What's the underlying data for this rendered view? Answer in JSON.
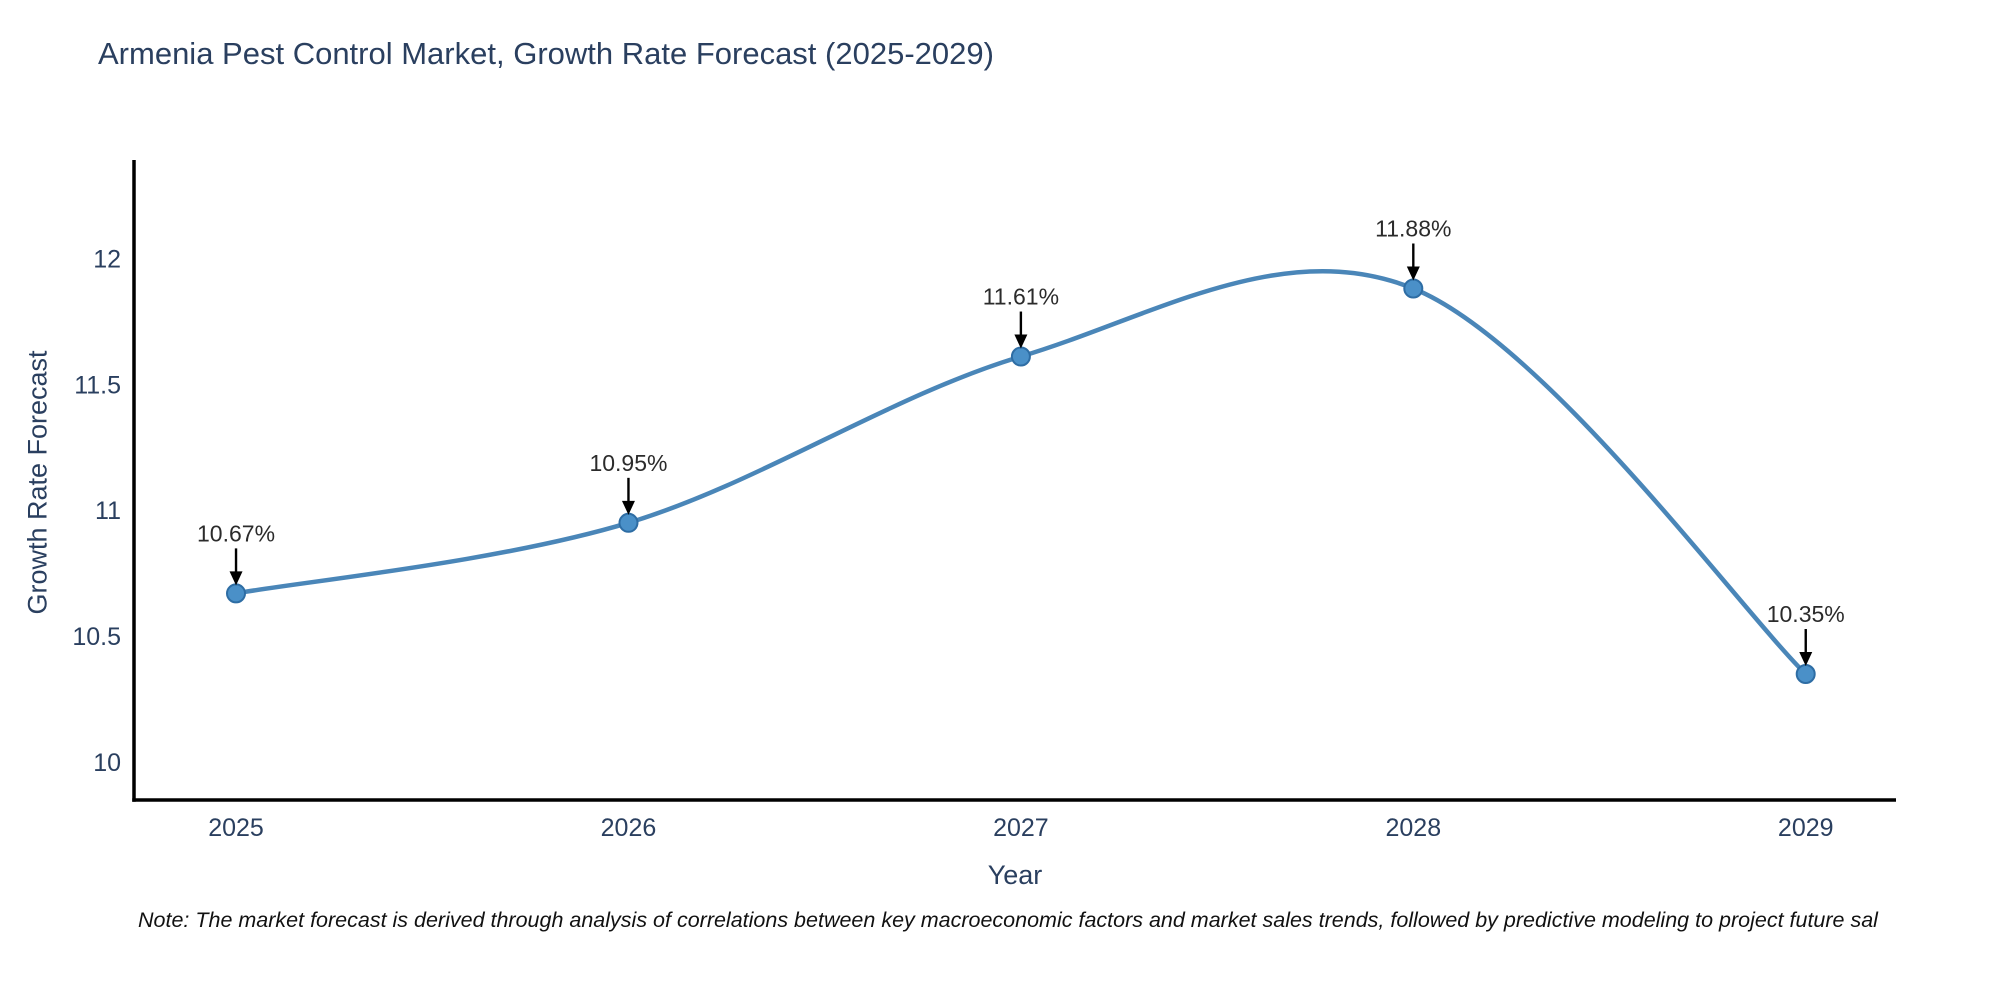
{
  "chart_data": {
    "type": "line",
    "line_shape": "spline",
    "x": [
      2025,
      2026,
      2027,
      2028,
      2029
    ],
    "y": [
      10.67,
      10.95,
      11.61,
      11.88,
      10.35
    ],
    "point_labels": [
      "10.67%",
      "10.95%",
      "11.61%",
      "11.88%",
      "10.35%"
    ],
    "title": "Armenia Pest Control Market, Growth Rate Forecast (2025-2029)",
    "xlabel": "Year",
    "ylabel": "Growth Rate Forecast",
    "x_ticks": [
      2025,
      2026,
      2027,
      2028,
      2029
    ],
    "y_ticks": [
      10,
      10.5,
      11,
      11.5,
      12
    ],
    "xlim": [
      2024.74,
      2029.23
    ],
    "ylim": [
      9.85,
      12.39
    ],
    "grid": false,
    "legend_position": "none",
    "colors": {
      "line": "#4a86b8",
      "marker_fill": "#4a90c8",
      "marker_edge": "#2e6da4",
      "axis": "#000000",
      "title_text": "#2a3f5f",
      "tick_text": "#2a3f5f",
      "annotation_text": "#2b2b2b",
      "arrow": "#000000",
      "background": "#ffffff"
    }
  },
  "note": {
    "text": "Note: The market forecast is derived through analysis of correlations between key macroeconomic factors and market sales trends, followed by predictive modeling to project future sal"
  }
}
